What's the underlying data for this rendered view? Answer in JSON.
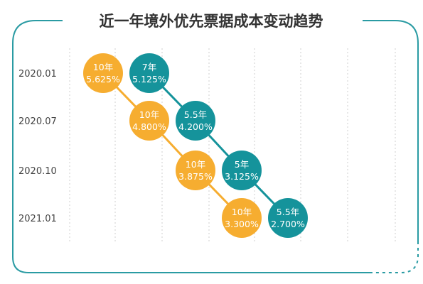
{
  "colors": {
    "frame": "#2a9ba3",
    "orange": "#f6ad30",
    "teal": "#15939b"
  },
  "chart_data": {
    "type": "scatter",
    "title": "近一年境外优先票据成本变动趋势",
    "y_categories": [
      "2020.01",
      "2020.07",
      "2020.10",
      "2021.01"
    ],
    "grid": true,
    "series": [
      {
        "color_key": "orange",
        "points": [
          {
            "term": "10年",
            "rate": "5.625%",
            "y": "2020.01"
          },
          {
            "term": "10年",
            "rate": "4.800%",
            "y": "2020.07"
          },
          {
            "term": "10年",
            "rate": "3.875%",
            "y": "2020.10"
          },
          {
            "term": "10年",
            "rate": "3.300%",
            "y": "2021.01"
          }
        ]
      },
      {
        "color_key": "teal",
        "points": [
          {
            "term": "7年",
            "rate": "5.125%",
            "y": "2020.01"
          },
          {
            "term": "5.5年",
            "rate": "4.200%",
            "y": "2020.07"
          },
          {
            "term": "5年",
            "rate": "3.125%",
            "y": "2020.10"
          },
          {
            "term": "5.5年",
            "rate": "2.700%",
            "y": "2021.01"
          }
        ]
      }
    ]
  }
}
